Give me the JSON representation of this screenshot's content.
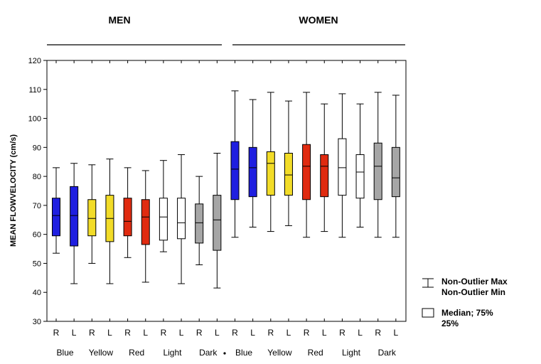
{
  "chart_data": {
    "type": "box",
    "groups": [
      {
        "label": "MEN",
        "color_word": "black"
      },
      {
        "label": "WOMEN",
        "color_word": "black"
      }
    ],
    "ylabel": "MEAN FLOWVELOCITY (cm/s)",
    "ylim": [
      30,
      120
    ],
    "yticks": [
      30,
      40,
      50,
      60,
      70,
      80,
      90,
      100,
      110,
      120
    ],
    "grid": false,
    "categories": [
      "Blue",
      "Yellow",
      "Red",
      "Light",
      "Dark",
      "Blue",
      "Yellow",
      "Red",
      "Light",
      "Dark"
    ],
    "sub_labels": [
      "R",
      "L",
      "R",
      "L",
      "R",
      "L",
      "R",
      "L",
      "R",
      "L",
      "R",
      "L",
      "R",
      "L",
      "R",
      "L",
      "R",
      "L",
      "R",
      "L"
    ],
    "colors": {
      "Blue": "#1f1fe0",
      "Yellow": "#f2dc28",
      "Red": "#e02b10",
      "Light": "#ffffff",
      "Dark": "#a6a6a6"
    },
    "boxes": [
      {
        "group": "MEN",
        "color": "Blue",
        "side": "R",
        "min": 53.5,
        "q1": 59.5,
        "median": 66.5,
        "q3": 72.5,
        "max": 83.0
      },
      {
        "group": "MEN",
        "color": "Blue",
        "side": "L",
        "min": 43.0,
        "q1": 56.0,
        "median": 66.5,
        "q3": 76.5,
        "max": 84.5
      },
      {
        "group": "MEN",
        "color": "Yellow",
        "side": "R",
        "min": 50.0,
        "q1": 59.5,
        "median": 65.5,
        "q3": 72.0,
        "max": 84.0
      },
      {
        "group": "MEN",
        "color": "Yellow",
        "side": "L",
        "min": 43.0,
        "q1": 57.5,
        "median": 65.5,
        "q3": 73.5,
        "max": 86.0
      },
      {
        "group": "MEN",
        "color": "Red",
        "side": "R",
        "min": 52.0,
        "q1": 59.5,
        "median": 64.5,
        "q3": 72.5,
        "max": 83.0
      },
      {
        "group": "MEN",
        "color": "Red",
        "side": "L",
        "min": 43.5,
        "q1": 56.5,
        "median": 66.0,
        "q3": 72.0,
        "max": 82.0
      },
      {
        "group": "MEN",
        "color": "Light",
        "side": "R",
        "min": 54.0,
        "q1": 58.0,
        "median": 66.0,
        "q3": 72.5,
        "max": 85.5
      },
      {
        "group": "MEN",
        "color": "Light",
        "side": "L",
        "min": 43.0,
        "q1": 58.5,
        "median": 64.0,
        "q3": 72.5,
        "max": 87.5
      },
      {
        "group": "MEN",
        "color": "Dark",
        "side": "R",
        "min": 49.5,
        "q1": 57.0,
        "median": 64.0,
        "q3": 70.5,
        "max": 80.0
      },
      {
        "group": "MEN",
        "color": "Dark",
        "side": "L",
        "min": 41.5,
        "q1": 54.5,
        "median": 65.0,
        "q3": 73.5,
        "max": 88.0
      },
      {
        "group": "WOMEN",
        "color": "Blue",
        "side": "R",
        "min": 59.0,
        "q1": 72.0,
        "median": 82.5,
        "q3": 92.0,
        "max": 109.5
      },
      {
        "group": "WOMEN",
        "color": "Blue",
        "side": "L",
        "min": 62.5,
        "q1": 73.0,
        "median": 83.0,
        "q3": 90.0,
        "max": 106.5
      },
      {
        "group": "WOMEN",
        "color": "Yellow",
        "side": "R",
        "min": 61.0,
        "q1": 73.5,
        "median": 84.5,
        "q3": 88.5,
        "max": 109.0
      },
      {
        "group": "WOMEN",
        "color": "Yellow",
        "side": "L",
        "min": 63.0,
        "q1": 73.5,
        "median": 80.5,
        "q3": 88.0,
        "max": 106.0
      },
      {
        "group": "WOMEN",
        "color": "Red",
        "side": "R",
        "min": 59.0,
        "q1": 72.0,
        "median": 83.5,
        "q3": 91.0,
        "max": 109.0
      },
      {
        "group": "WOMEN",
        "color": "Red",
        "side": "L",
        "min": 61.0,
        "q1": 73.0,
        "median": 83.5,
        "q3": 87.5,
        "max": 105.0
      },
      {
        "group": "WOMEN",
        "color": "Light",
        "side": "R",
        "min": 59.0,
        "q1": 73.5,
        "median": 83.0,
        "q3": 93.0,
        "max": 108.5
      },
      {
        "group": "WOMEN",
        "color": "Light",
        "side": "L",
        "min": 62.5,
        "q1": 72.5,
        "median": 81.5,
        "q3": 87.5,
        "max": 105.0
      },
      {
        "group": "WOMEN",
        "color": "Dark",
        "side": "R",
        "min": 59.0,
        "q1": 72.0,
        "median": 83.5,
        "q3": 91.5,
        "max": 109.0
      },
      {
        "group": "WOMEN",
        "color": "Dark",
        "side": "L",
        "min": 59.0,
        "q1": 73.0,
        "median": 79.5,
        "q3": 90.0,
        "max": 108.0
      }
    ],
    "legend": {
      "placement": "bottom-right",
      "whisker_line1": "Non-Outlier Max",
      "whisker_line2": "Non-Outlier Min",
      "box_line1": "Median; 75%",
      "box_line2": "25%"
    }
  }
}
